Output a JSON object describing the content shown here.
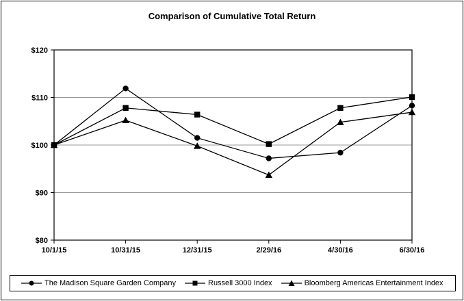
{
  "chart_data": {
    "type": "line",
    "title": "Comparison of Cumulative Total Return",
    "xlabel": "",
    "ylabel": "",
    "x_labels": [
      "10/1/15",
      "10/31/15",
      "12/31/15",
      "2/29/16",
      "4/30/16",
      "6/30/16"
    ],
    "y_tick_labels": [
      "$120",
      "$110",
      "$100",
      "$90",
      "$80"
    ],
    "y_tick_values": [
      120,
      110,
      100,
      90,
      80
    ],
    "ylim": [
      80,
      120
    ],
    "grid": "horizontal-gray-lines-at-90-100-110",
    "legend_position": "bottom",
    "series": [
      {
        "name": "The Madison Square Garden Company",
        "marker": "circle",
        "values": [
          100,
          111.9,
          101.5,
          97.2,
          98.4,
          108.3
        ]
      },
      {
        "name": "Russell 3000 Index",
        "marker": "square",
        "values": [
          100,
          107.8,
          106.4,
          100.2,
          107.8,
          110.1
        ]
      },
      {
        "name": "Bloomberg Americas Entertainment Index",
        "marker": "triangle",
        "values": [
          100,
          105.2,
          99.8,
          93.7,
          104.8,
          106.9
        ]
      }
    ],
    "colors": {
      "series": "#000000",
      "grid": "#999999",
      "text": "#000000",
      "background": "#ffffff",
      "border": "#000000"
    }
  }
}
